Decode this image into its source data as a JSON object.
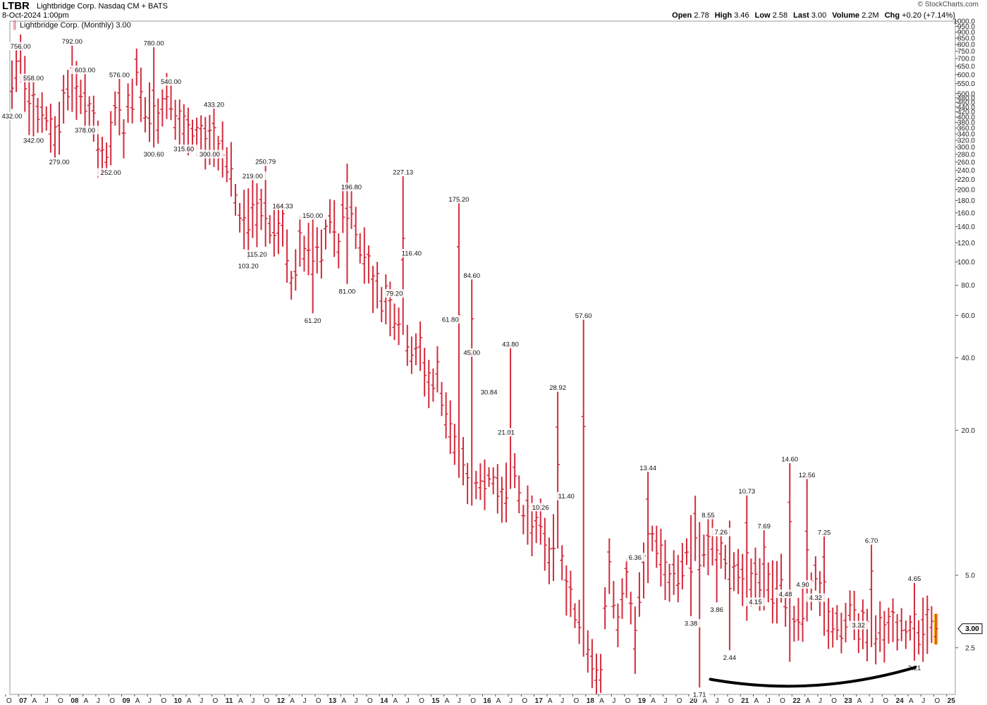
{
  "header": {
    "symbol": "LTBR",
    "company": "Lightbridge Corp. Nasdaq CM + BATS",
    "date": "8-Oct-2024 1:00pm",
    "credit": "© StockCharts.com",
    "ohlc": [
      {
        "label": "Open",
        "value": "2.78"
      },
      {
        "label": "High",
        "value": "3.46"
      },
      {
        "label": "Low",
        "value": "2.58"
      },
      {
        "label": "Last",
        "value": "3.00"
      },
      {
        "label": "Volume",
        "value": "2.2M"
      },
      {
        "label": "Chg",
        "value": "+0.20 (+7.14%)"
      }
    ]
  },
  "chart_data": {
    "type": "ohlc-bar",
    "legend": "Lightbridge Corp. (Monthly) 3.00",
    "y_scale": "log",
    "ylim": [
      1.6,
      1000
    ],
    "series_color": "#d22b3c",
    "last_bar_color": "#f5c518",
    "last_value_tag": "3.00",
    "y_ticks": [
      {
        "value": 2.5,
        "label": "2.5"
      },
      {
        "value": 5,
        "label": "5.0"
      },
      {
        "value": 20,
        "label": "20.0"
      },
      {
        "value": 40,
        "label": "40.0"
      },
      {
        "value": 60,
        "label": "60.0"
      },
      {
        "value": 80,
        "label": "80.0"
      },
      {
        "value": 100,
        "label": "100.0"
      },
      {
        "value": 120,
        "label": "120.0"
      },
      {
        "value": 140,
        "label": "140.0"
      },
      {
        "value": 160,
        "label": "160.0"
      },
      {
        "value": 180,
        "label": "180.0"
      },
      {
        "value": 200,
        "label": "200.0"
      },
      {
        "value": 220,
        "label": "220.0"
      },
      {
        "value": 240,
        "label": "240.0"
      },
      {
        "value": 260,
        "label": "260.0"
      },
      {
        "value": 280,
        "label": "280.0"
      },
      {
        "value": 300,
        "label": "300.0"
      },
      {
        "value": 320,
        "label": "320.0"
      },
      {
        "value": 340,
        "label": "340.0"
      },
      {
        "value": 360,
        "label": "360.0"
      },
      {
        "value": 380,
        "label": "380.0"
      },
      {
        "value": 400,
        "label": "400.0"
      },
      {
        "value": 420,
        "label": "420.0"
      },
      {
        "value": 440,
        "label": "440.0"
      },
      {
        "value": 460,
        "label": "460.0"
      },
      {
        "value": 480,
        "label": "480.0"
      },
      {
        "value": 500,
        "label": "500.0"
      },
      {
        "value": 550,
        "label": "550.0"
      },
      {
        "value": 600,
        "label": "600.0"
      },
      {
        "value": 650,
        "label": "650.0"
      },
      {
        "value": 700,
        "label": "700.0"
      },
      {
        "value": 750,
        "label": "750.0"
      },
      {
        "value": 800,
        "label": "800.0"
      },
      {
        "value": 850,
        "label": "850.0"
      },
      {
        "value": 900,
        "label": "900.0"
      },
      {
        "value": 950,
        "label": "950.0"
      },
      {
        "value": 1000,
        "label": "1000.0"
      }
    ],
    "x_labels": [
      {
        "label": "O",
        "date": "2006-10"
      },
      {
        "label": "07",
        "date": "2007-01"
      },
      {
        "label": "A",
        "date": "2007-04"
      },
      {
        "label": "J",
        "date": "2007-07"
      },
      {
        "label": "O",
        "date": "2007-10"
      },
      {
        "label": "08",
        "date": "2008-01"
      },
      {
        "label": "A",
        "date": "2008-04"
      },
      {
        "label": "J",
        "date": "2008-07"
      },
      {
        "label": "O",
        "date": "2008-10"
      },
      {
        "label": "09",
        "date": "2009-01"
      },
      {
        "label": "A",
        "date": "2009-04"
      },
      {
        "label": "J",
        "date": "2009-07"
      },
      {
        "label": "O",
        "date": "2009-10"
      },
      {
        "label": "10",
        "date": "2010-01"
      },
      {
        "label": "A",
        "date": "2010-04"
      },
      {
        "label": "J",
        "date": "2010-07"
      },
      {
        "label": "O",
        "date": "2010-10"
      },
      {
        "label": "11",
        "date": "2011-01"
      },
      {
        "label": "A",
        "date": "2011-04"
      },
      {
        "label": "J",
        "date": "2011-07"
      },
      {
        "label": "O",
        "date": "2011-10"
      },
      {
        "label": "12",
        "date": "2012-01"
      },
      {
        "label": "A",
        "date": "2012-04"
      },
      {
        "label": "J",
        "date": "2012-07"
      },
      {
        "label": "O",
        "date": "2012-10"
      },
      {
        "label": "13",
        "date": "2013-01"
      },
      {
        "label": "A",
        "date": "2013-04"
      },
      {
        "label": "J",
        "date": "2013-07"
      },
      {
        "label": "O",
        "date": "2013-10"
      },
      {
        "label": "14",
        "date": "2014-01"
      },
      {
        "label": "A",
        "date": "2014-04"
      },
      {
        "label": "J",
        "date": "2014-07"
      },
      {
        "label": "O",
        "date": "2014-10"
      },
      {
        "label": "15",
        "date": "2015-01"
      },
      {
        "label": "A",
        "date": "2015-04"
      },
      {
        "label": "J",
        "date": "2015-07"
      },
      {
        "label": "O",
        "date": "2015-10"
      },
      {
        "label": "16",
        "date": "2016-01"
      },
      {
        "label": "A",
        "date": "2016-04"
      },
      {
        "label": "J",
        "date": "2016-07"
      },
      {
        "label": "O",
        "date": "2016-10"
      },
      {
        "label": "17",
        "date": "2017-01"
      },
      {
        "label": "A",
        "date": "2017-04"
      },
      {
        "label": "J",
        "date": "2017-07"
      },
      {
        "label": "O",
        "date": "2017-10"
      },
      {
        "label": "18",
        "date": "2018-01"
      },
      {
        "label": "A",
        "date": "2018-04"
      },
      {
        "label": "J",
        "date": "2018-07"
      },
      {
        "label": "O",
        "date": "2018-10"
      },
      {
        "label": "19",
        "date": "2019-01"
      },
      {
        "label": "A",
        "date": "2019-04"
      },
      {
        "label": "J",
        "date": "2019-07"
      },
      {
        "label": "O",
        "date": "2019-10"
      },
      {
        "label": "20",
        "date": "2020-01"
      },
      {
        "label": "A",
        "date": "2020-04"
      },
      {
        "label": "J",
        "date": "2020-07"
      },
      {
        "label": "O",
        "date": "2020-10"
      },
      {
        "label": "21",
        "date": "2021-01"
      },
      {
        "label": "A",
        "date": "2021-04"
      },
      {
        "label": "J",
        "date": "2021-07"
      },
      {
        "label": "O",
        "date": "2021-10"
      },
      {
        "label": "22",
        "date": "2022-01"
      },
      {
        "label": "A",
        "date": "2022-04"
      },
      {
        "label": "J",
        "date": "2022-07"
      },
      {
        "label": "O",
        "date": "2022-10"
      },
      {
        "label": "23",
        "date": "2023-01"
      },
      {
        "label": "A",
        "date": "2023-04"
      },
      {
        "label": "J",
        "date": "2023-07"
      },
      {
        "label": "O",
        "date": "2023-10"
      },
      {
        "label": "24",
        "date": "2024-01"
      },
      {
        "label": "A",
        "date": "2024-04"
      },
      {
        "label": "J",
        "date": "2024-07"
      },
      {
        "label": "O",
        "date": "2024-10"
      },
      {
        "label": "25",
        "date": "2025-01"
      }
    ],
    "price_anchors": [
      [
        "2006-11",
        560
      ],
      [
        "2007-01",
        700
      ],
      [
        "2007-03",
        450
      ],
      [
        "2007-06",
        420
      ],
      [
        "2007-09",
        340
      ],
      [
        "2007-12",
        560
      ],
      [
        "2008-02",
        500
      ],
      [
        "2008-05",
        420
      ],
      [
        "2008-07",
        310
      ],
      [
        "2008-09",
        270
      ],
      [
        "2008-11",
        420
      ],
      [
        "2009-01",
        360
      ],
      [
        "2009-04",
        620
      ],
      [
        "2009-06",
        440
      ],
      [
        "2009-09",
        390
      ],
      [
        "2009-11",
        470
      ],
      [
        "2010-02",
        390
      ],
      [
        "2010-05",
        320
      ],
      [
        "2010-08",
        330
      ],
      [
        "2010-10",
        310
      ],
      [
        "2010-12",
        300
      ],
      [
        "2011-02",
        230
      ],
      [
        "2011-04",
        150
      ],
      [
        "2011-06",
        150
      ],
      [
        "2011-08",
        180
      ],
      [
        "2011-11",
        140
      ],
      [
        "2012-02",
        130
      ],
      [
        "2012-04",
        82
      ],
      [
        "2012-06",
        115
      ],
      [
        "2012-09",
        102
      ],
      [
        "2012-11",
        108
      ],
      [
        "2013-01",
        150
      ],
      [
        "2013-03",
        120
      ],
      [
        "2013-05",
        210
      ],
      [
        "2013-07",
        135
      ],
      [
        "2013-09",
        110
      ],
      [
        "2013-12",
        75
      ],
      [
        "2014-02",
        70
      ],
      [
        "2014-04",
        62
      ],
      [
        "2014-06",
        56
      ],
      [
        "2014-08",
        44
      ],
      [
        "2014-10",
        42
      ],
      [
        "2014-12",
        31
      ],
      [
        "2015-02",
        34
      ],
      [
        "2015-04",
        24
      ],
      [
        "2015-07",
        15
      ],
      [
        "2015-09",
        12.5
      ],
      [
        "2015-11",
        12
      ],
      [
        "2016-02",
        13
      ],
      [
        "2016-04",
        11.4
      ],
      [
        "2016-06",
        11.5
      ],
      [
        "2016-08",
        14
      ],
      [
        "2016-10",
        9
      ],
      [
        "2016-12",
        8.3
      ],
      [
        "2017-02",
        7.6
      ],
      [
        "2017-04",
        6.0
      ],
      [
        "2017-06",
        7.2
      ],
      [
        "2017-08",
        4.4
      ],
      [
        "2017-10",
        3.5
      ],
      [
        "2017-12",
        3.0
      ],
      [
        "2018-02",
        2.3
      ],
      [
        "2018-04",
        2.0
      ],
      [
        "2018-06",
        5.6
      ],
      [
        "2018-08",
        3.0
      ],
      [
        "2018-10",
        4.7
      ],
      [
        "2018-12",
        2.7
      ],
      [
        "2019-02",
        5.2
      ],
      [
        "2019-04",
        7.2
      ],
      [
        "2019-06",
        6.0
      ],
      [
        "2019-08",
        5.0
      ],
      [
        "2019-10",
        5.2
      ],
      [
        "2019-12",
        6.2
      ],
      [
        "2020-02",
        7.8
      ],
      [
        "2020-04",
        6.1
      ],
      [
        "2020-06",
        6.5
      ],
      [
        "2020-08",
        6.0
      ],
      [
        "2020-10",
        6.3
      ],
      [
        "2020-12",
        4.9
      ],
      [
        "2021-02",
        4.3
      ],
      [
        "2021-04",
        4.8
      ],
      [
        "2021-06",
        4.5
      ],
      [
        "2021-08",
        4.2
      ],
      [
        "2021-10",
        4.5
      ],
      [
        "2021-12",
        3.0
      ],
      [
        "2022-02",
        3.5
      ],
      [
        "2022-04",
        3.6
      ],
      [
        "2022-06",
        4.9
      ],
      [
        "2022-08",
        3.3
      ],
      [
        "2022-10",
        3.2
      ],
      [
        "2022-12",
        2.9
      ],
      [
        "2023-02",
        3.4
      ],
      [
        "2023-04",
        3.1
      ],
      [
        "2023-06",
        3.0
      ],
      [
        "2023-08",
        2.8
      ],
      [
        "2023-10",
        3.0
      ]
    ],
    "peak_labels": [
      {
        "label": "756.00",
        "date": "2007-01",
        "value": 756,
        "pos": "above"
      },
      {
        "label": "558.00",
        "date": "2007-04",
        "value": 558,
        "pos": "above"
      },
      {
        "label": "432.00",
        "date": "2006-11",
        "value": 432,
        "pos": "below"
      },
      {
        "label": "342.00",
        "date": "2007-04",
        "value": 342,
        "pos": "below"
      },
      {
        "label": "279.00",
        "date": "2007-10",
        "value": 279,
        "pos": "below"
      },
      {
        "label": "792.00",
        "date": "2008-01",
        "value": 792,
        "pos": "above"
      },
      {
        "label": "603.00",
        "date": "2008-04",
        "value": 603,
        "pos": "above"
      },
      {
        "label": "378.00",
        "date": "2008-04",
        "value": 378,
        "pos": "below"
      },
      {
        "label": "252.00",
        "date": "2008-10",
        "value": 252,
        "pos": "below"
      },
      {
        "label": "576.00",
        "date": "2008-12",
        "value": 576,
        "pos": "above"
      },
      {
        "label": "780.00",
        "date": "2009-08",
        "value": 780,
        "pos": "above"
      },
      {
        "label": "300.60",
        "date": "2009-08",
        "value": 300.6,
        "pos": "below"
      },
      {
        "label": "540.00",
        "date": "2009-12",
        "value": 540,
        "pos": "above"
      },
      {
        "label": "315.60",
        "date": "2010-03",
        "value": 315.6,
        "pos": "below"
      },
      {
        "label": "300.00",
        "date": "2010-09",
        "value": 300,
        "pos": "below"
      },
      {
        "label": "433.20",
        "date": "2010-10",
        "value": 433.2,
        "pos": "above"
      },
      {
        "label": "219.00",
        "date": "2011-07",
        "value": 219,
        "pos": "above"
      },
      {
        "label": "250.79",
        "date": "2011-10",
        "value": 250.79,
        "pos": "above"
      },
      {
        "label": "103.20",
        "date": "2011-06",
        "value": 103.2,
        "pos": "below"
      },
      {
        "label": "115.20",
        "date": "2011-08",
        "value": 115.2,
        "pos": "below"
      },
      {
        "label": "164.33",
        "date": "2012-02",
        "value": 164.33,
        "pos": "above"
      },
      {
        "label": "150.00",
        "date": "2012-09",
        "value": 150,
        "pos": "above"
      },
      {
        "label": "61.20",
        "date": "2012-09",
        "value": 61.2,
        "pos": "below"
      },
      {
        "label": "196.80",
        "date": "2013-06",
        "value": 196.8,
        "pos": "above"
      },
      {
        "label": "81.00",
        "date": "2013-05",
        "value": 81,
        "pos": "below"
      },
      {
        "label": "227.13",
        "date": "2014-06",
        "value": 227.13,
        "pos": "above"
      },
      {
        "label": "79.20",
        "date": "2014-04",
        "value": 79.2,
        "pos": "below"
      },
      {
        "label": "116.40",
        "date": "2014-08",
        "value": 116.4,
        "pos": "below"
      },
      {
        "label": "175.20",
        "date": "2015-07",
        "value": 175.2,
        "pos": "above"
      },
      {
        "label": "84.60",
        "date": "2015-10",
        "value": 84.6,
        "pos": "above"
      },
      {
        "label": "61.80",
        "date": "2015-05",
        "value": 61.8,
        "pos": "below"
      },
      {
        "label": "45.00",
        "date": "2015-10",
        "value": 45,
        "pos": "below"
      },
      {
        "label": "43.80",
        "date": "2016-07",
        "value": 43.8,
        "pos": "above"
      },
      {
        "label": "30.84",
        "date": "2016-02",
        "value": 30.84,
        "pos": "below"
      },
      {
        "label": "21.01",
        "date": "2016-06",
        "value": 21.01,
        "pos": "below"
      },
      {
        "label": "28.92",
        "date": "2017-06",
        "value": 28.92,
        "pos": "above"
      },
      {
        "label": "10.26",
        "date": "2017-02",
        "value": 10.26,
        "pos": "below"
      },
      {
        "label": "11.40",
        "date": "2017-08",
        "value": 11.4,
        "pos": "below"
      },
      {
        "label": "57.60",
        "date": "2017-12",
        "value": 57.6,
        "pos": "above"
      },
      {
        "label": "13.44",
        "date": "2019-03",
        "value": 13.44,
        "pos": "above"
      },
      {
        "label": "6.36",
        "date": "2018-12",
        "value": 6.36,
        "pos": "below"
      },
      {
        "label": "3.38",
        "date": "2020-01",
        "value": 3.38,
        "pos": "below"
      },
      {
        "label": "8.55",
        "date": "2020-05",
        "value": 8.55,
        "pos": "above"
      },
      {
        "label": "7.26",
        "date": "2020-08",
        "value": 7.26,
        "pos": "above"
      },
      {
        "label": "3.86",
        "date": "2020-07",
        "value": 3.86,
        "pos": "below"
      },
      {
        "label": "2.44",
        "date": "2020-10",
        "value": 2.44,
        "pos": "below"
      },
      {
        "label": "1.71",
        "date": "2020-03",
        "value": 1.71,
        "pos": "below"
      },
      {
        "label": "10.73",
        "date": "2021-02",
        "value": 10.73,
        "pos": "above"
      },
      {
        "label": "7.69",
        "date": "2021-06",
        "value": 7.69,
        "pos": "above"
      },
      {
        "label": "4.15",
        "date": "2021-04",
        "value": 4.15,
        "pos": "below"
      },
      {
        "label": "4.48",
        "date": "2021-11",
        "value": 4.48,
        "pos": "below"
      },
      {
        "label": "14.60",
        "date": "2021-12",
        "value": 14.6,
        "pos": "above"
      },
      {
        "label": "4.90",
        "date": "2022-03",
        "value": 4.9,
        "pos": "below"
      },
      {
        "label": "12.56",
        "date": "2022-04",
        "value": 12.56,
        "pos": "above"
      },
      {
        "label": "7.25",
        "date": "2022-08",
        "value": 7.25,
        "pos": "above"
      },
      {
        "label": "4.32",
        "date": "2022-06",
        "value": 4.32,
        "pos": "below"
      },
      {
        "label": "6.70",
        "date": "2023-07",
        "value": 6.7,
        "pos": "above"
      },
      {
        "label": "3.32",
        "date": "2023-04",
        "value": 3.32,
        "pos": "below"
      },
      {
        "label": "4.65",
        "date": "2024-05",
        "value": 4.65,
        "pos": "above"
      },
      {
        "label": "2.21",
        "date": "2024-05",
        "value": 2.21,
        "pos": "below"
      }
    ],
    "annotation": {
      "type": "rounding-bottom arc",
      "from": [
        "2020-06",
        1.9
      ],
      "to": [
        "2024-05",
        2.1
      ],
      "color": "#000000"
    }
  }
}
